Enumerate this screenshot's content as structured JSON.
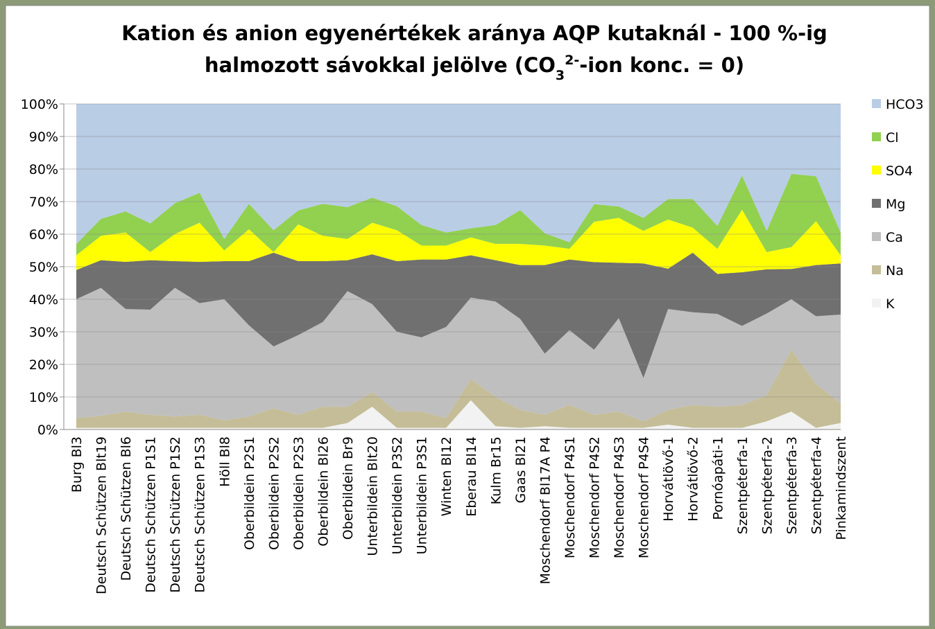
{
  "chart_data": {
    "type": "stacked_area",
    "title": {
      "line1": "Kation és anion egyenértékek aránya AQP kutaknál - 100 %-ig",
      "line2": "halmozott sávokkal jelölve (CO",
      "sub": "3",
      "sup": "2-",
      "rest": "-ion konc. = 0)"
    },
    "categories": [
      "Burg Bl3",
      "Deutsch Schützen Blt19",
      "Deutsch Schützen Bl6",
      "Deutsch Schützen P1S1",
      "Deutsch Schützen P1S2",
      "Deutsch Schützen P1S3",
      "Höll Bl8",
      "Oberbildein P2S1",
      "Oberbildein P2S2",
      "Oberbildein P2S3",
      "Oberbildein Bl26",
      "Oberbildein Br9",
      "Unterbildein Blt20",
      "Unterbildein P3S2",
      "Unterbildein P3S1",
      "Winten Bl12",
      "Eberau Bl14",
      "Kulm Br15",
      "Gaas Bl21",
      "Moschendorf Bl17A P4",
      "Moschendorf P4S1",
      "Moschendorf P4S2",
      "Moschendorf P4S3",
      "Moschendorf P4S4",
      "Horvátlövő-1",
      "Horvátlövő-2",
      "Pornóapáti-1",
      "Szentpéterfa-1",
      "Szentpéterfa-2",
      "Szentpéterfa-3",
      "Szentpéterfa-4",
      "Pinkamindszent"
    ],
    "series": [
      {
        "name": "K",
        "color": "#f2f2f2",
        "values": [
          0.5,
          0.5,
          0.5,
          0.5,
          0.5,
          0.5,
          0.5,
          0.5,
          0.5,
          0.5,
          0.5,
          2,
          7,
          0.5,
          0.5,
          0.5,
          9,
          1,
          0.5,
          1,
          0.5,
          0.5,
          0.5,
          0.5,
          1.5,
          0.5,
          0.5,
          0.5,
          2.5,
          5.5,
          0.5,
          2
        ]
      },
      {
        "name": "Na",
        "color": "#c4bd97",
        "values": [
          3,
          3.7,
          5,
          4,
          3.5,
          4,
          2.3,
          3.5,
          6,
          4,
          6.5,
          5,
          4.5,
          5,
          5,
          3,
          6.5,
          9,
          5.5,
          3.5,
          7,
          4,
          5,
          2,
          4.5,
          7,
          6.5,
          7,
          8,
          19,
          13.5,
          6
        ]
      },
      {
        "name": "Ca",
        "color": "#bfbfbf",
        "values": [
          36.5,
          39.3,
          31.5,
          32.3,
          39.5,
          34.3,
          37.2,
          28,
          19,
          24.5,
          26,
          35.5,
          27,
          24.5,
          22.8,
          28,
          25,
          29.3,
          28,
          18.8,
          23,
          20,
          28.7,
          13.3,
          31,
          28.5,
          28.5,
          24.3,
          25.1,
          15.5,
          20.8,
          27.3
        ]
      },
      {
        "name": "Mg",
        "color": "#707070",
        "values": [
          9,
          8.5,
          14.5,
          15.2,
          8.2,
          12.7,
          11.7,
          19.7,
          28.8,
          22.7,
          18.7,
          9.5,
          15.3,
          21.7,
          23.9,
          20.7,
          13,
          12.7,
          16.5,
          27.2,
          21.7,
          26.9,
          17,
          35.2,
          12.4,
          18.3,
          12.3,
          16.5,
          13.6,
          9.3,
          15.7,
          15.7
        ]
      },
      {
        "name": "SO4",
        "color": "#ffff00",
        "values": [
          4.5,
          7.5,
          9,
          2.5,
          8.3,
          12,
          3.3,
          9.8,
          0.2,
          11.3,
          7.8,
          6.5,
          9.7,
          9.5,
          4.3,
          4.3,
          5.5,
          5,
          6.5,
          6,
          3.3,
          12.4,
          13.8,
          10,
          15.1,
          7.7,
          7.7,
          19.2,
          5.3,
          6.7,
          13.5,
          2.5
        ]
      },
      {
        "name": "Cl",
        "color": "#92d050",
        "values": [
          3.5,
          5.2,
          6.5,
          8.8,
          9.5,
          9.2,
          3.5,
          7.8,
          6.7,
          4.3,
          9.8,
          9.8,
          7.7,
          7.4,
          6.3,
          4,
          2.8,
          5.8,
          10.4,
          3.8,
          2,
          5.4,
          3.5,
          4,
          6.3,
          8.8,
          7,
          10.5,
          6.5,
          22.5,
          13.8,
          7
        ]
      },
      {
        "name": "HCO3",
        "color": "#b9cde5",
        "values": [
          43,
          35.3,
          33,
          36.7,
          30.5,
          27.3,
          41.5,
          30.7,
          38.8,
          32.7,
          30.7,
          31.7,
          28.8,
          31.4,
          37.2,
          39.5,
          38.2,
          37.2,
          32.6,
          39.7,
          42.5,
          30.8,
          31.5,
          35,
          29.2,
          29.2,
          37.5,
          22,
          39,
          21.5,
          22.2,
          39.5
        ]
      }
    ],
    "ylim": [
      0,
      100
    ],
    "yticks": [
      {
        "value": 0,
        "label": "0%"
      },
      {
        "value": 10,
        "label": "10%"
      },
      {
        "value": 20,
        "label": "20%"
      },
      {
        "value": 30,
        "label": "30%"
      },
      {
        "value": 40,
        "label": "40%"
      },
      {
        "value": 50,
        "label": "50%"
      },
      {
        "value": 60,
        "label": "60%"
      },
      {
        "value": 70,
        "label": "70%"
      },
      {
        "value": 80,
        "label": "80%"
      },
      {
        "value": 90,
        "label": "90%"
      },
      {
        "value": 100,
        "label": "100%"
      }
    ],
    "grid": true,
    "legend": "right"
  }
}
